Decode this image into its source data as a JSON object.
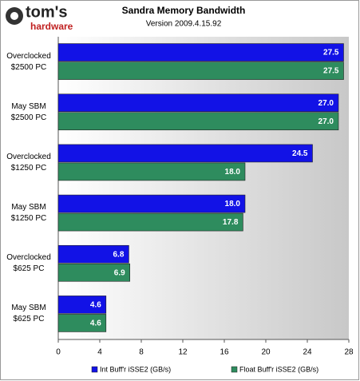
{
  "logo": {
    "brand": "tom's",
    "sub": "hardware"
  },
  "chart_data": {
    "type": "hbar",
    "title": "Sandra Memory Bandwidth",
    "subtitle": "Version 2009.4.15.92",
    "categories": [
      "Overclocked\n$2500 PC",
      "May SBM\n$2500 PC",
      "Overclocked\n$1250 PC",
      "May SBM\n$1250 PC",
      "Overclocked\n$625 PC",
      "May SBM\n$625 PC"
    ],
    "series": [
      {
        "name": "Int Buff'r iSSE2 (GB/s)",
        "color": "#1212e6",
        "values": [
          27.5,
          27.0,
          24.5,
          18.0,
          6.8,
          4.6
        ],
        "value_labels": [
          "27.5",
          "27.0",
          "24.5",
          "18.0",
          "6.8",
          "4.6"
        ]
      },
      {
        "name": "Float Buff'r iSSE2 (GB/s)",
        "color": "#2e8c5e",
        "values": [
          27.5,
          27.0,
          18.0,
          17.8,
          6.9,
          4.6
        ],
        "value_labels": [
          "27.5",
          "27.0",
          "18.0",
          "17.8",
          "6.9",
          "4.6"
        ]
      }
    ],
    "xlim": [
      0,
      28
    ],
    "xticks": [
      0,
      4,
      8,
      12,
      16,
      20,
      24,
      28
    ],
    "grid": false
  }
}
